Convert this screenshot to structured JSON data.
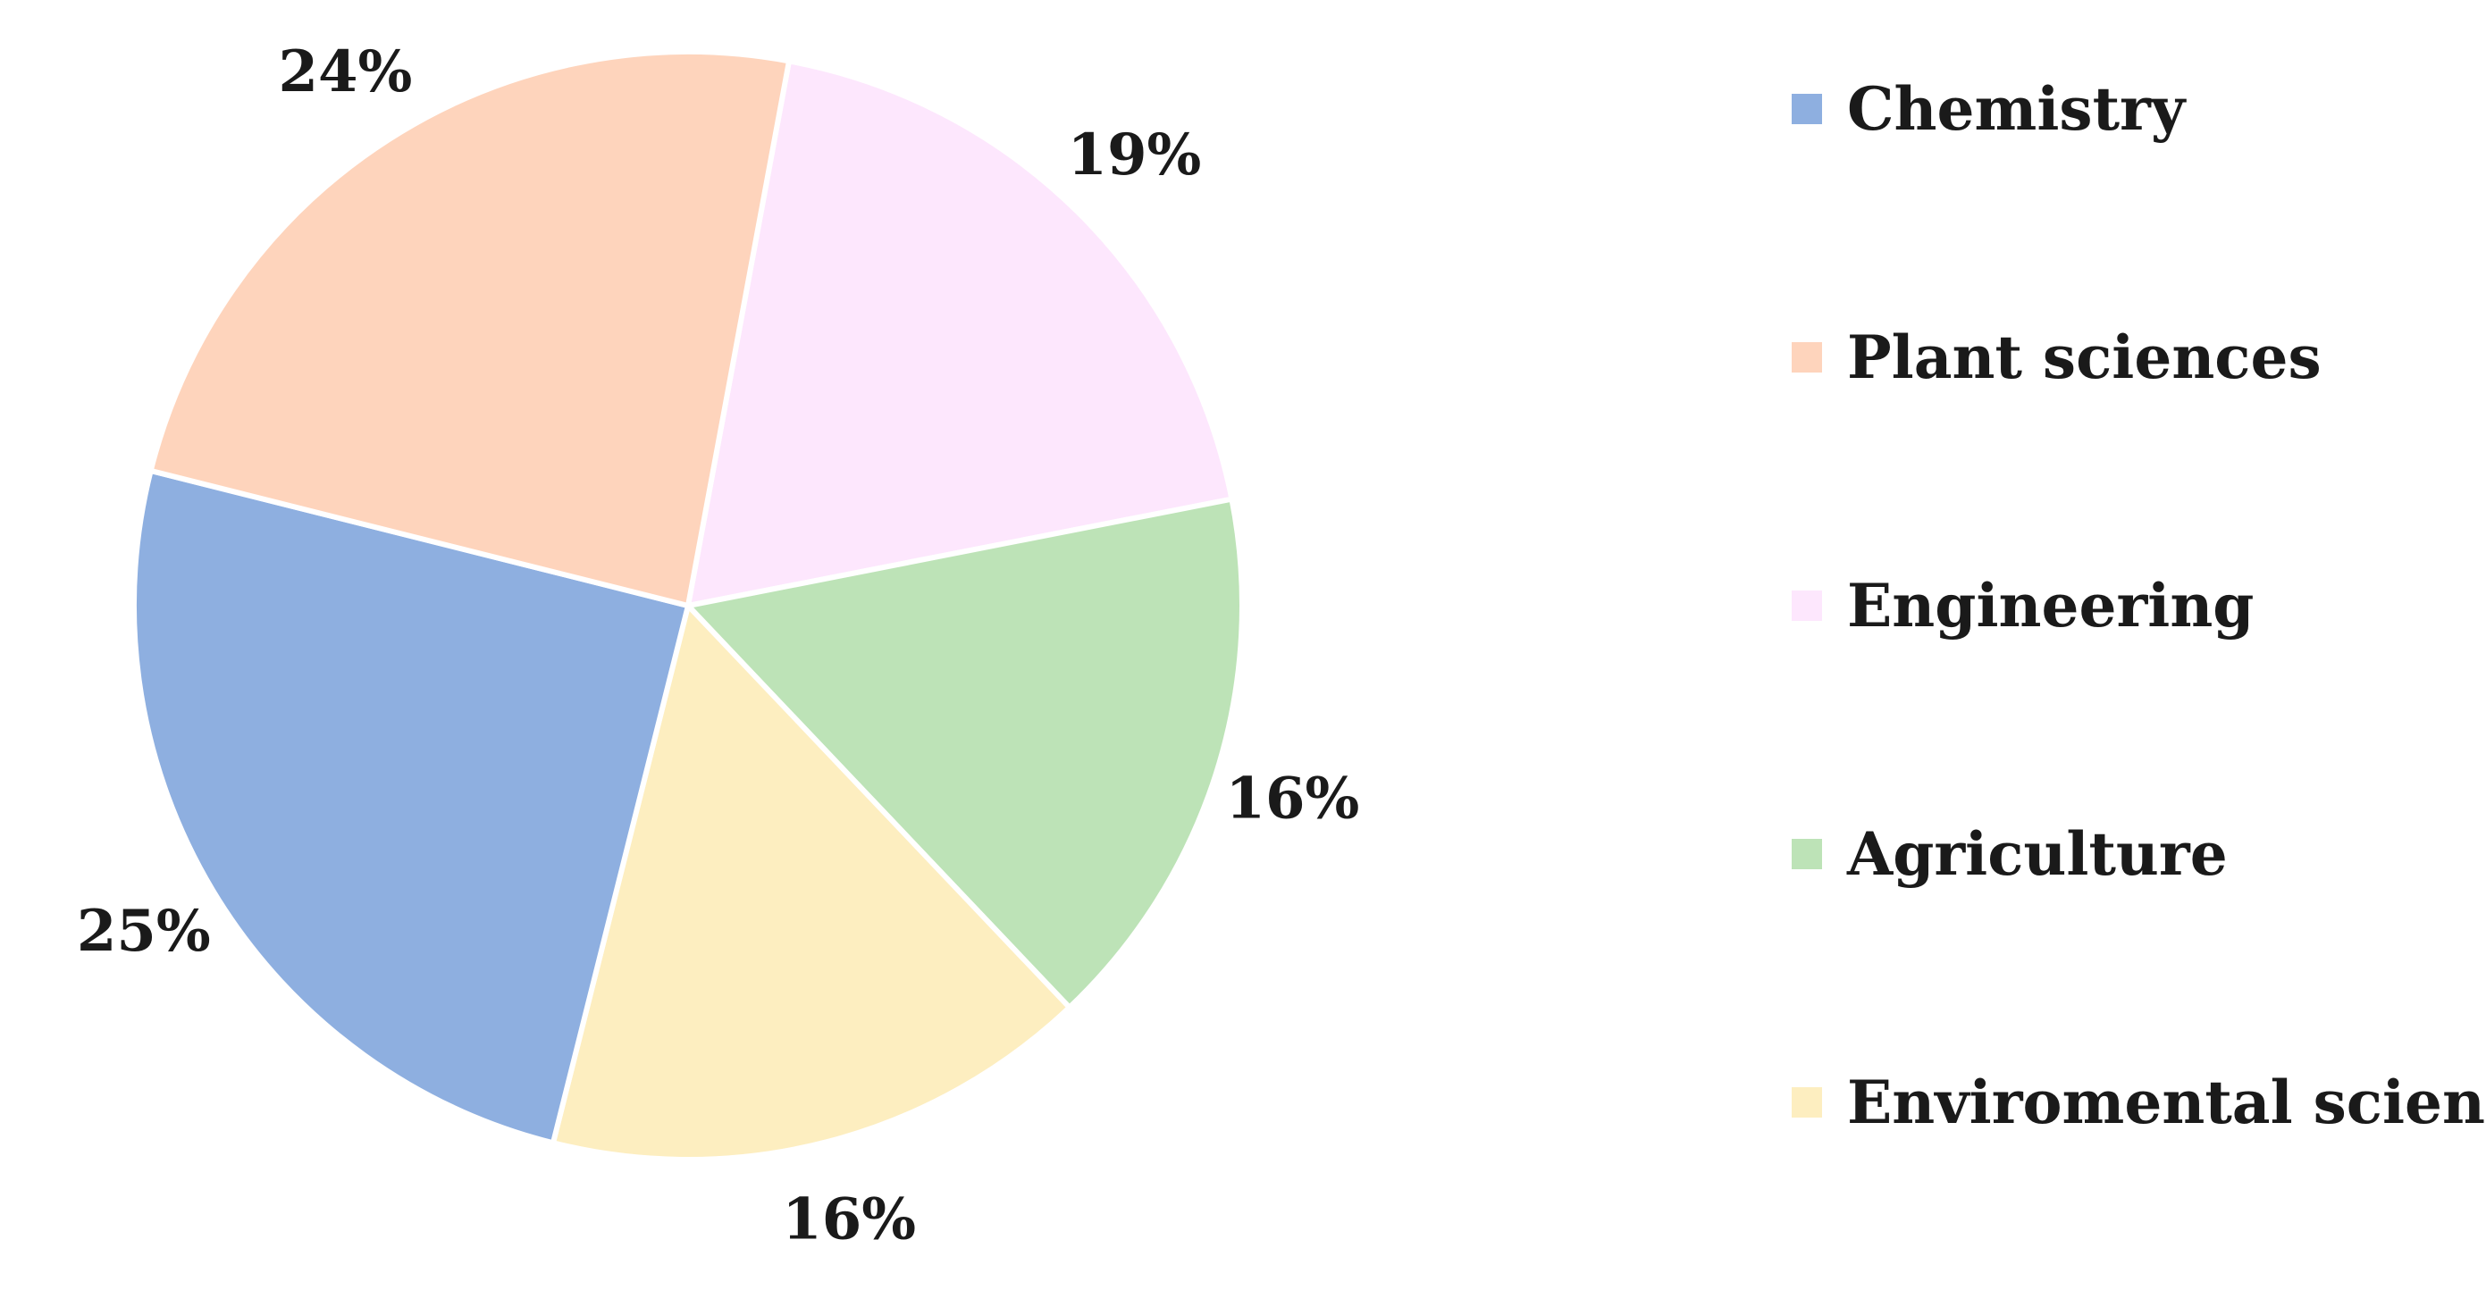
{
  "chart_data": {
    "type": "pie",
    "title": "",
    "slices": [
      {
        "name": "Chemistry",
        "value": 25,
        "label": "25%",
        "color": "#8eafe0"
      },
      {
        "name": "Plant sciences",
        "value": 24,
        "label": "24%",
        "color": "#fed4bc"
      },
      {
        "name": "Engineering",
        "value": 19,
        "label": "19%",
        "color": "#fde7fd"
      },
      {
        "name": "Agriculture",
        "value": 16,
        "label": "16%",
        "color": "#bde3b7"
      },
      {
        "name": "Enviromental sciences",
        "value": 16,
        "label": "16%",
        "color": "#fdeec0"
      }
    ],
    "legend_placement": "right",
    "slice_order_clockwise_from_top": [
      "Engineering",
      "Agriculture",
      "Enviromental sciences",
      "Chemistry",
      "Plant sciences"
    ]
  }
}
